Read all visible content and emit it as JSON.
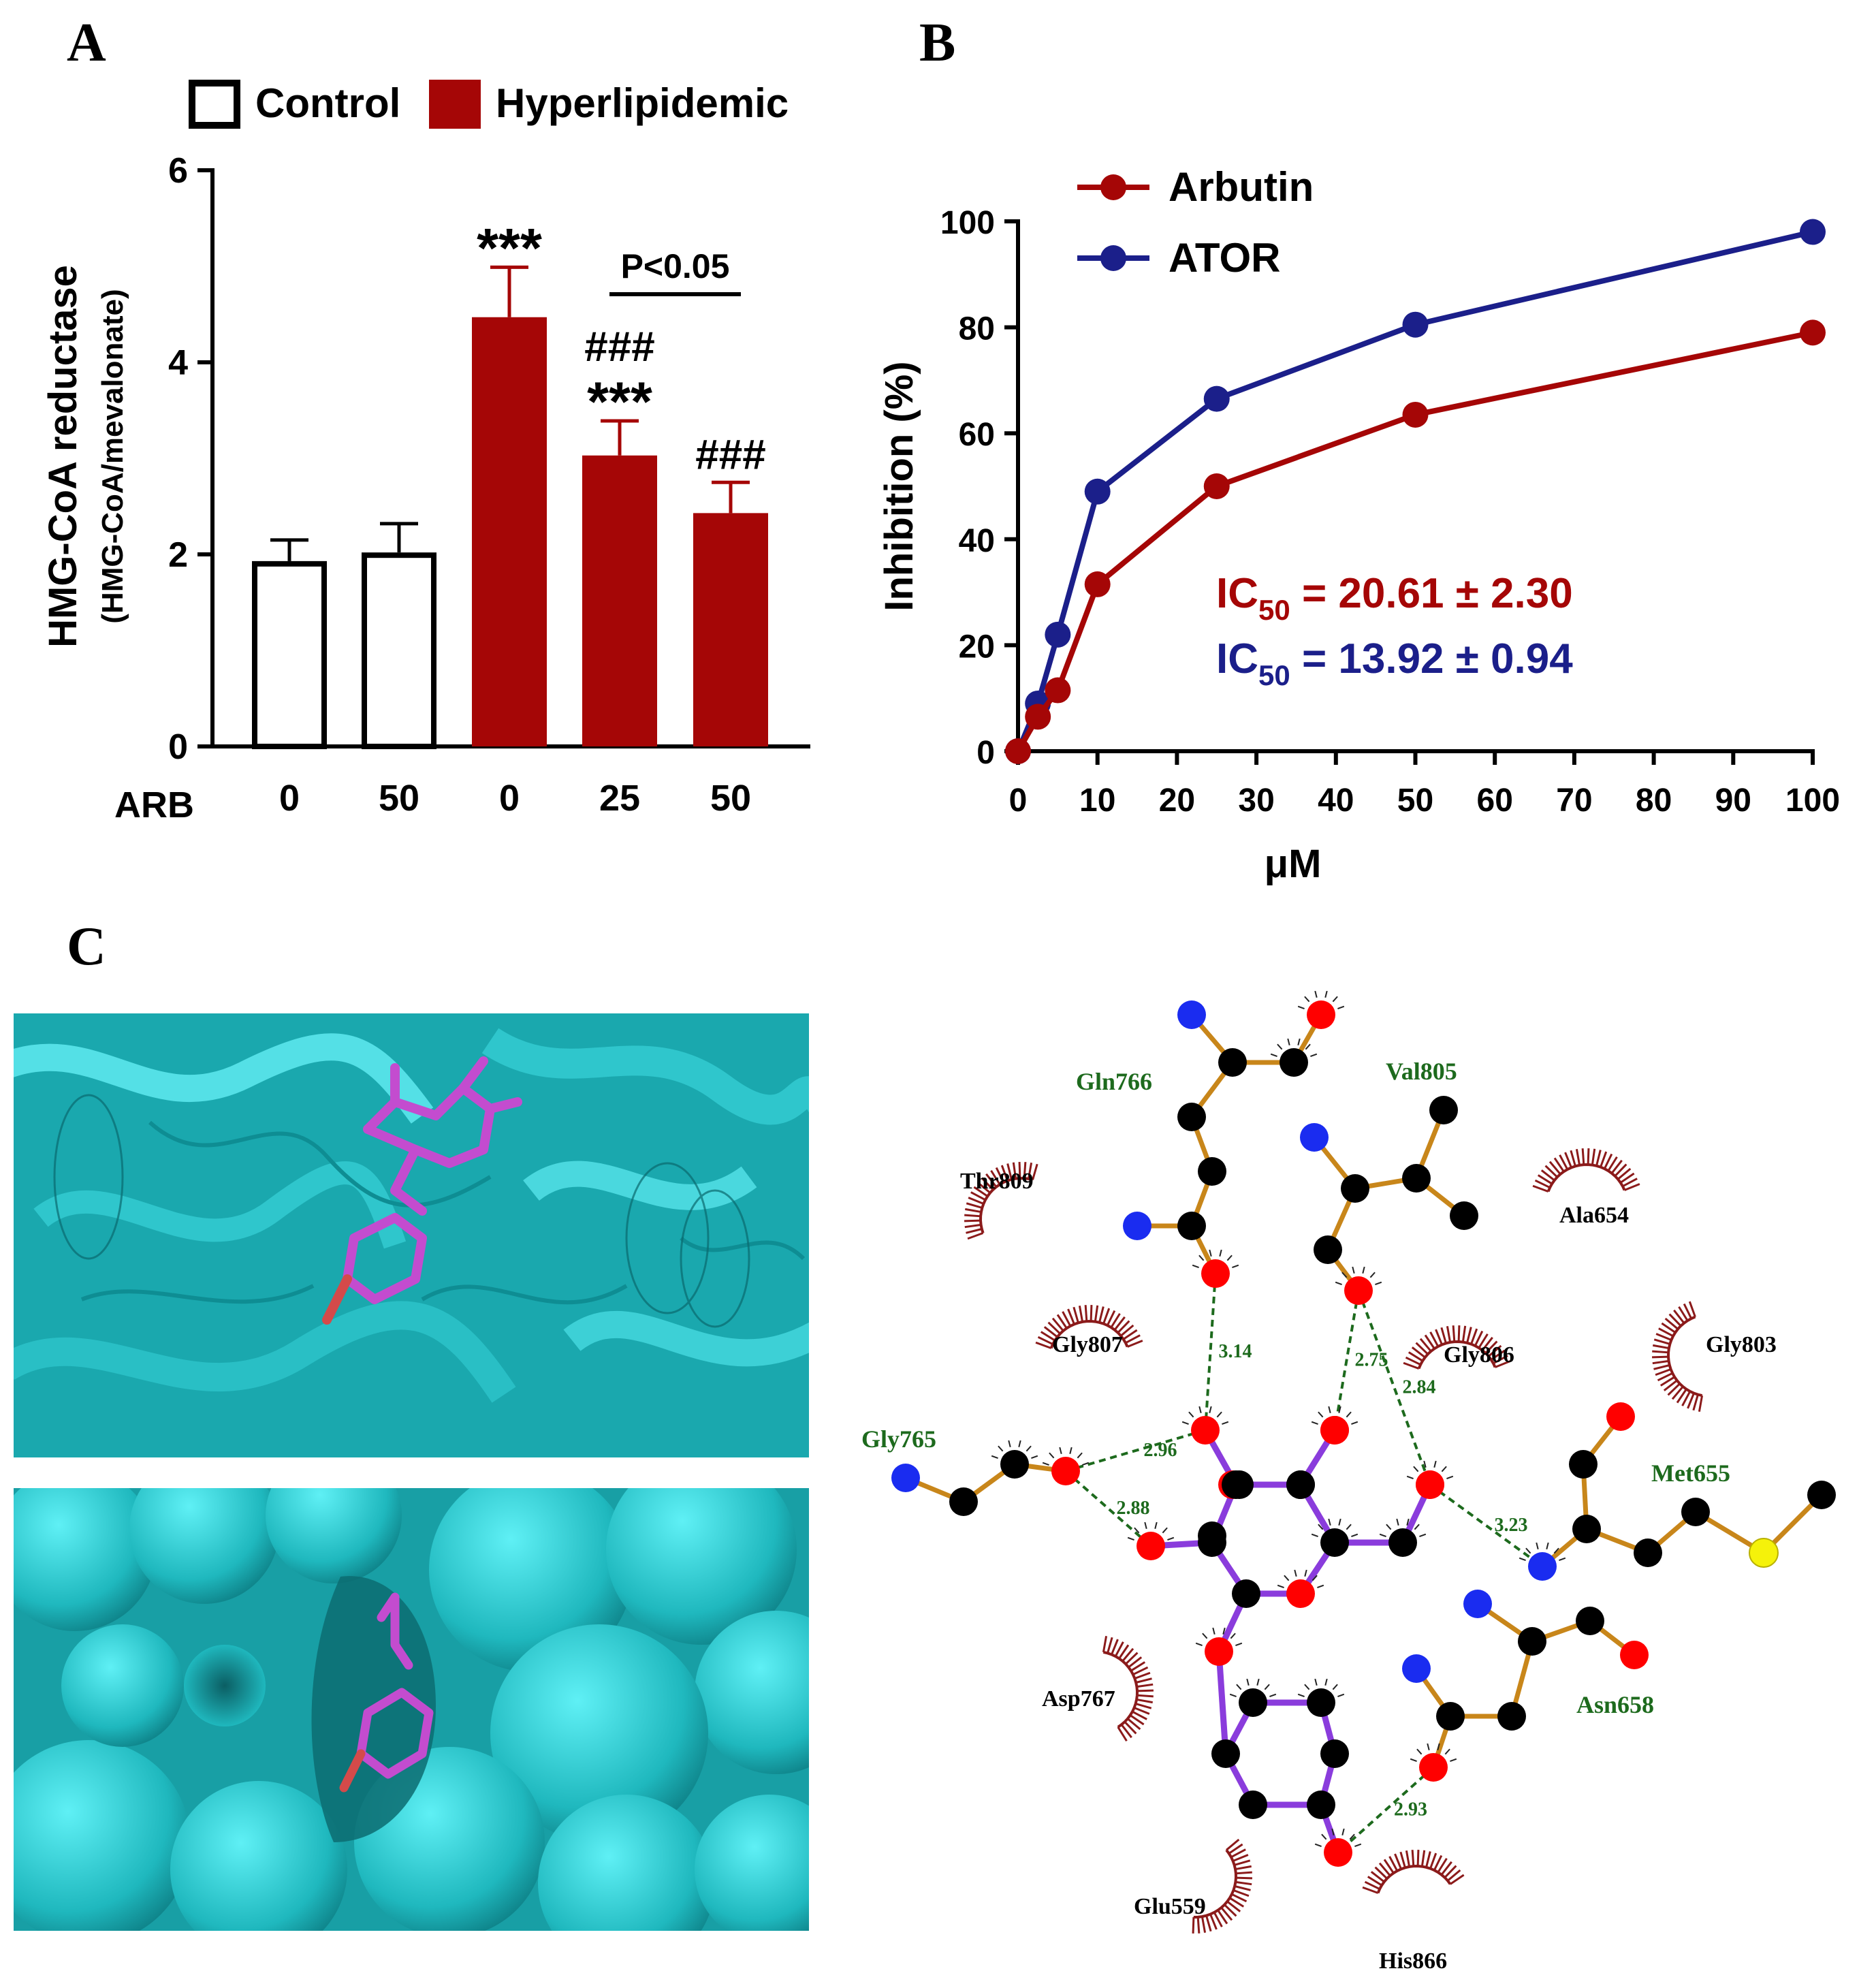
{
  "panels": {
    "a": "A",
    "b": "B",
    "c": "C"
  },
  "colors": {
    "hyper": "#a50606",
    "ator": "#1b1f8a",
    "teal": "#1fb8be",
    "ligand": "#c34ccf",
    "hbond": "#1d6a1d",
    "contact": "#8b1a1a",
    "bond_ligand": "#8a3cdc",
    "bond_residue": "#c8861a"
  },
  "chart_data": [
    {
      "type": "bar",
      "ylabel": "HMG-CoA reductase",
      "ylabel2": "(HMG-CoA/mevalonate)",
      "xlabel": "ARB",
      "legend": [
        "Control",
        "Hyperlipidemic"
      ],
      "legend_placement": "top",
      "categories": [
        "0",
        "50",
        "0",
        "25",
        "50"
      ],
      "groups": [
        "Control",
        "Control",
        "Hyperlipidemic",
        "Hyperlipidemic",
        "Hyperlipidemic"
      ],
      "values": [
        1.93,
        2.02,
        4.47,
        3.03,
        2.43
      ],
      "errors": [
        0.22,
        0.3,
        0.52,
        0.36,
        0.32
      ],
      "ylim": [
        0,
        6
      ],
      "yticks": [
        "0",
        "2",
        "4",
        "6"
      ],
      "annotations": [
        {
          "bar": 2,
          "lines": [
            "***"
          ]
        },
        {
          "bar": 3,
          "lines": [
            "###",
            "***"
          ]
        },
        {
          "bar": 4,
          "lines": [
            "###"
          ]
        }
      ],
      "bracket": {
        "from": 3,
        "to": 4,
        "label": "P<0.05"
      }
    },
    {
      "type": "line",
      "ylabel": "Inhibition (%)",
      "xlabel": "μM",
      "xlim": [
        0,
        100
      ],
      "ylim": [
        0,
        100
      ],
      "xticks": [
        "0",
        "10",
        "20",
        "30",
        "40",
        "50",
        "60",
        "70",
        "80",
        "90",
        "100"
      ],
      "yticks": [
        "0",
        "20",
        "40",
        "60",
        "80",
        "100"
      ],
      "legend_placement": "top-left",
      "series": [
        {
          "name": "Arbutin",
          "x": [
            0,
            2.5,
            5,
            10,
            25,
            50,
            100
          ],
          "y": [
            0,
            6.5,
            11.5,
            31.5,
            50,
            63.5,
            79
          ],
          "ic50": "IC50 = 20.61 ± 2.30"
        },
        {
          "name": "ATOR",
          "x": [
            0,
            2.5,
            5,
            10,
            25,
            50,
            100
          ],
          "y": [
            0,
            9,
            22,
            49,
            66.5,
            80.5,
            98
          ],
          "ic50": "IC50 = 13.92 ± 0.94"
        }
      ],
      "ic50_parts": [
        {
          "prefix": "IC",
          "sub": "50",
          "rest": " = 20.61 ± 2.30"
        },
        {
          "prefix": "IC",
          "sub": "50",
          "rest": " = 13.92 ± 0.94"
        }
      ]
    }
  ],
  "interaction_diagram": {
    "hbond_residues": [
      "Gln766",
      "Val805",
      "Gly765",
      "Met655",
      "Asn658"
    ],
    "contact_residues": [
      "Thr809",
      "Ala654",
      "Gly807",
      "Gly806",
      "Gly803",
      "Asp767",
      "Glu559",
      "His866"
    ],
    "hbond_distances": [
      "3.14",
      "2.75",
      "2.84",
      "2.96",
      "2.88",
      "3.23",
      "2.93"
    ]
  }
}
